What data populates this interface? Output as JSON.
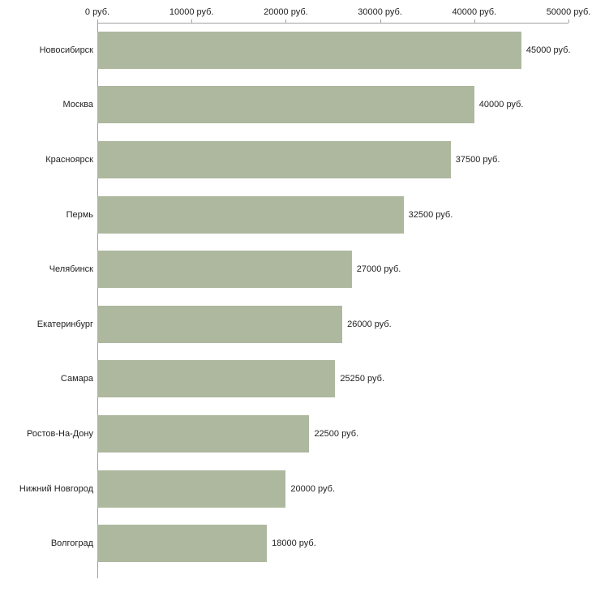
{
  "chart_data": {
    "type": "bar",
    "orientation": "horizontal",
    "title": "",
    "xlabel": "",
    "ylabel": "",
    "xlim": [
      0,
      50000
    ],
    "grid": false,
    "legend": false,
    "unit": "руб.",
    "categories": [
      "Новосибирск",
      "Москва",
      "Красноярск",
      "Пермь",
      "Челябинск",
      "Екатеринбург",
      "Самара",
      "Ростов-На-Дону",
      "Нижний Новгород",
      "Волгоград"
    ],
    "values": [
      45000,
      40000,
      37500,
      32500,
      27000,
      26000,
      25250,
      22500,
      20000,
      18000
    ],
    "value_labels": [
      "45000 руб.",
      "40000 руб.",
      "37500 руб.",
      "32500 руб.",
      "27000 руб.",
      "26000 руб.",
      "25250 руб.",
      "22500 руб.",
      "20000 руб.",
      "18000 руб."
    ],
    "x_ticks": [
      0,
      10000,
      20000,
      30000,
      40000,
      50000
    ],
    "x_tick_labels": [
      "0 руб.",
      "10000 руб.",
      "20000 руб.",
      "30000 руб.",
      "40000 руб.",
      "50000 руб."
    ],
    "colors": {
      "bar": "#adb89e",
      "axis": "#a0a0a0",
      "text": "#1f1f1f",
      "background": "#ffffff"
    }
  }
}
